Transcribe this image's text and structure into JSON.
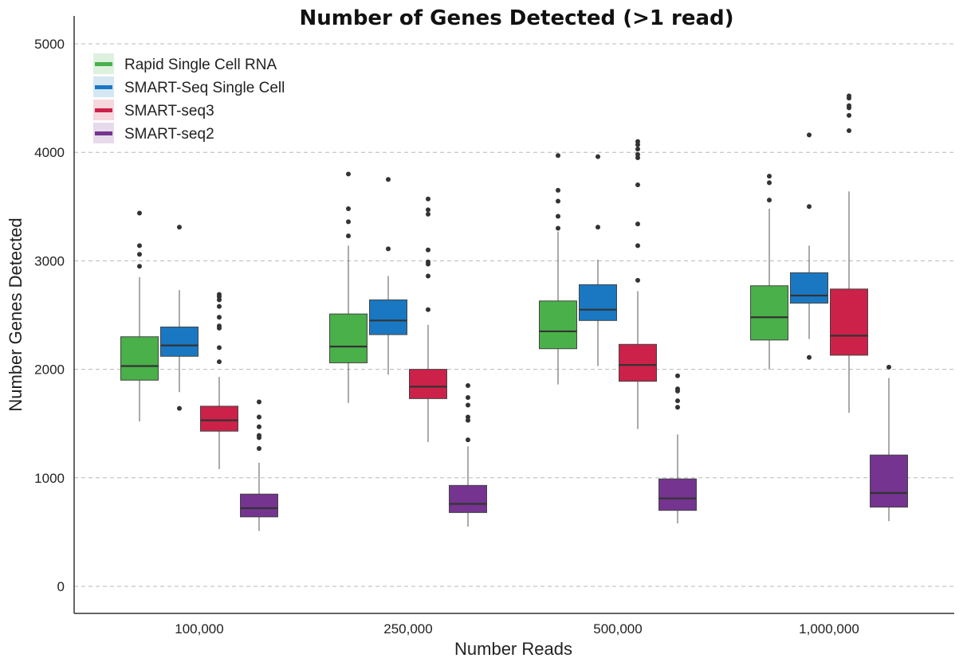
{
  "chart_data": {
    "type": "box",
    "title": "Number of Genes Detected (>1 read)",
    "xlabel": "Number Reads",
    "ylabel": "Number Genes Detected",
    "ylim": [
      -250,
      5250
    ],
    "yticks": [
      "0",
      "1000",
      "2000",
      "3000",
      "4000",
      "5000"
    ],
    "ytick_values": [
      0,
      1000,
      2000,
      3000,
      4000,
      5000
    ],
    "categories": [
      "100,000",
      "250,000",
      "500,000",
      "1,000,000"
    ],
    "grid": "y-dashed",
    "legend_position": "top-left",
    "series": [
      {
        "name": "Rapid Single Cell RNA",
        "color": "#4ab04a",
        "boxes": [
          {
            "low": 1520,
            "q1": 1900,
            "median": 2030,
            "q3": 2300,
            "high": 2850,
            "outliers": [
              2950,
              3060,
              3140,
              3440
            ]
          },
          {
            "low": 1690,
            "q1": 2060,
            "median": 2210,
            "q3": 2510,
            "high": 3140,
            "outliers": [
              3230,
              3360,
              3480,
              3800
            ]
          },
          {
            "low": 1860,
            "q1": 2190,
            "median": 2350,
            "q3": 2630,
            "high": 3270,
            "outliers": [
              3300,
              3410,
              3550,
              3650,
              3970
            ]
          },
          {
            "low": 2000,
            "q1": 2270,
            "median": 2480,
            "q3": 2770,
            "high": 3480,
            "outliers": [
              3560,
              3720,
              3780
            ]
          }
        ]
      },
      {
        "name": "SMART-Seq Single Cell",
        "color": "#1a78c2",
        "boxes": [
          {
            "low": 1790,
            "q1": 2120,
            "median": 2220,
            "q3": 2390,
            "high": 2730,
            "outliers": [
              1640,
              3310
            ]
          },
          {
            "low": 1950,
            "q1": 2320,
            "median": 2450,
            "q3": 2640,
            "high": 2860,
            "outliers": [
              3110,
              3750
            ]
          },
          {
            "low": 2030,
            "q1": 2450,
            "median": 2550,
            "q3": 2780,
            "high": 3010,
            "outliers": [
              3310,
              3960
            ]
          },
          {
            "low": 2280,
            "q1": 2610,
            "median": 2680,
            "q3": 2890,
            "high": 3140,
            "outliers": [
              2110,
              3500,
              4160
            ]
          }
        ]
      },
      {
        "name": "SMART-seq3",
        "color": "#cc2149",
        "boxes": [
          {
            "low": 1080,
            "q1": 1430,
            "median": 1530,
            "q3": 1660,
            "high": 1930,
            "outliers": [
              2070,
              2200,
              2380,
              2400,
              2480,
              2580,
              2640,
              2670,
              2690
            ]
          },
          {
            "low": 1330,
            "q1": 1730,
            "median": 1840,
            "q3": 2000,
            "high": 2410,
            "outliers": [
              2550,
              2860,
              2970,
              2990,
              3100,
              3430,
              3470,
              3570
            ]
          },
          {
            "low": 1450,
            "q1": 1890,
            "median": 2040,
            "q3": 2230,
            "high": 2720,
            "outliers": [
              2820,
              3140,
              3340,
              3700,
              3950,
              3980,
              4030,
              4070,
              4100
            ]
          },
          {
            "low": 1600,
            "q1": 2130,
            "median": 2310,
            "q3": 2740,
            "high": 3640,
            "outliers": [
              4200,
              4340,
              4410,
              4430,
              4500,
              4520
            ]
          }
        ]
      },
      {
        "name": "SMART-seq2",
        "color": "#74348f",
        "boxes": [
          {
            "low": 510,
            "q1": 640,
            "median": 720,
            "q3": 850,
            "high": 1140,
            "outliers": [
              1270,
              1370,
              1390,
              1470,
              1560,
              1700
            ]
          },
          {
            "low": 550,
            "q1": 680,
            "median": 760,
            "q3": 930,
            "high": 1290,
            "outliers": [
              1350,
              1530,
              1560,
              1670,
              1740,
              1850
            ]
          },
          {
            "low": 580,
            "q1": 700,
            "median": 810,
            "q3": 990,
            "high": 1400,
            "outliers": [
              1650,
              1710,
              1800,
              1820,
              1940
            ]
          },
          {
            "low": 600,
            "q1": 730,
            "median": 860,
            "q3": 1210,
            "high": 1920,
            "outliers": [
              2020
            ]
          }
        ]
      }
    ]
  }
}
